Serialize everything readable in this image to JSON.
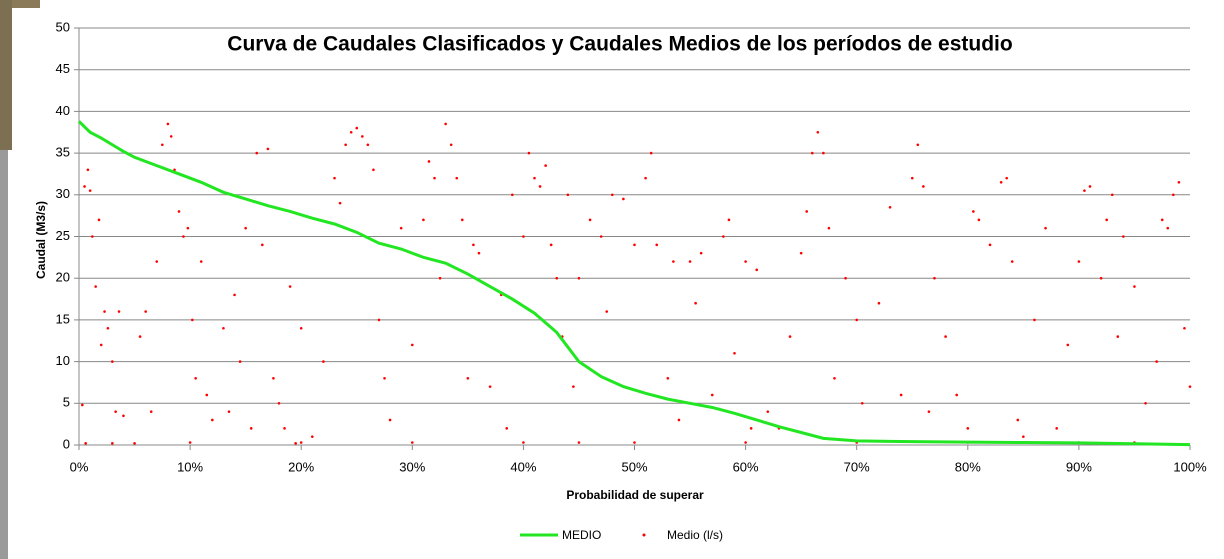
{
  "chart_data": {
    "type": "line",
    "title": "Curva de Caudales Clasificados y Caudales Medios de los períodos de estudio",
    "x_label": "Probabilidad de superar",
    "y_label": "Caudal (M3/s)",
    "xlim": [
      0,
      100
    ],
    "ylim": [
      0,
      50
    ],
    "xticks": [
      {
        "value": 0,
        "label": "0%"
      },
      {
        "value": 10,
        "label": "10%"
      },
      {
        "value": 20,
        "label": "20%"
      },
      {
        "value": 30,
        "label": "30%"
      },
      {
        "value": 40,
        "label": "40%"
      },
      {
        "value": 50,
        "label": "50%"
      },
      {
        "value": 60,
        "label": "60%"
      },
      {
        "value": 70,
        "label": "70%"
      },
      {
        "value": 80,
        "label": "80%"
      },
      {
        "value": 90,
        "label": "90%"
      },
      {
        "value": 100,
        "label": "100%"
      }
    ],
    "yticks": [
      0,
      5,
      10,
      15,
      20,
      25,
      30,
      35,
      40,
      45,
      50
    ],
    "grid": true,
    "legend": "bottom",
    "series": [
      {
        "name": "MEDIO",
        "type": "line",
        "color": "#22e622",
        "x": [
          0,
          1,
          2,
          3,
          4,
          5,
          7,
          9,
          11,
          13,
          15,
          17,
          19,
          21,
          23,
          25,
          27,
          29,
          31,
          33,
          35,
          37,
          39,
          41,
          43,
          45,
          47,
          49,
          51,
          53,
          55,
          57,
          59,
          61,
          63,
          65,
          67,
          70,
          75,
          80,
          85,
          90,
          95,
          100
        ],
        "values": [
          38.8,
          37.5,
          36.8,
          36,
          35.2,
          34.5,
          33.5,
          32.5,
          31.5,
          30.3,
          29.5,
          28.7,
          28,
          27.2,
          26.5,
          25.5,
          24.2,
          23.5,
          22.5,
          21.8,
          20.5,
          19,
          17.5,
          15.8,
          13.5,
          10,
          8.2,
          7,
          6.2,
          5.5,
          5,
          4.5,
          3.8,
          3,
          2.2,
          1.5,
          0.8,
          0.5,
          0.4,
          0.35,
          0.3,
          0.25,
          0.15,
          0.05
        ]
      },
      {
        "name": "Medio (l/s)",
        "type": "scatter",
        "color": "#ff0000",
        "x": [
          0.3,
          0.5,
          0.8,
          1,
          1.2,
          1.5,
          1.8,
          2,
          2.3,
          2.6,
          3,
          3.3,
          3.6,
          4,
          0.6,
          3,
          5,
          5.5,
          6,
          6.5,
          7,
          7.5,
          8,
          8.3,
          8.6,
          9,
          9.4,
          9.8,
          10.2,
          10.5,
          11,
          11.5,
          12,
          13,
          13.5,
          14,
          14.5,
          15,
          15.5,
          16,
          16.5,
          17,
          17.5,
          18,
          18.5,
          19,
          19.5,
          20,
          21,
          22,
          23,
          23.5,
          24,
          24.5,
          25,
          25.5,
          26,
          26.5,
          27,
          27.5,
          28,
          29,
          30,
          31,
          31.5,
          32,
          32.5,
          33,
          33.5,
          34,
          34.5,
          35,
          35.5,
          36,
          37,
          38,
          38.5,
          39,
          40,
          40.5,
          41,
          41.5,
          42,
          42.5,
          43,
          43.5,
          44,
          44.5,
          45,
          46,
          47,
          47.5,
          48,
          49,
          50,
          51,
          51.5,
          52,
          53,
          53.5,
          54,
          55,
          55.5,
          56,
          57,
          58,
          58.5,
          59,
          60,
          60.5,
          61,
          62,
          63,
          64,
          65,
          65.5,
          66,
          66.5,
          67,
          67.5,
          68,
          69,
          70,
          70.5,
          72,
          73,
          74,
          75,
          75.5,
          76,
          76.5,
          77,
          78,
          79,
          80,
          80.5,
          81,
          82,
          83,
          83.5,
          84,
          84.5,
          85,
          86,
          87,
          88,
          89,
          90,
          90.5,
          91,
          92,
          92.5,
          93,
          93.5,
          94,
          95,
          96,
          97,
          97.5,
          98,
          98.5,
          99,
          99.5,
          100,
          10,
          20,
          30,
          40,
          45,
          50,
          60,
          70,
          80,
          90,
          95
        ],
        "values": [
          4.8,
          31,
          33,
          30.5,
          25,
          19,
          27,
          12,
          16,
          14,
          10,
          4,
          16,
          3.5,
          0.2,
          0.2,
          0.2,
          13,
          16,
          4,
          22,
          36,
          38.5,
          37,
          33,
          28,
          25,
          26,
          15,
          8,
          22,
          6,
          3,
          14,
          4,
          18,
          10,
          26,
          2,
          35,
          24,
          35.5,
          8,
          5,
          2,
          19,
          0.2,
          14,
          1,
          10,
          32,
          29,
          36,
          37.5,
          38,
          37,
          36,
          33,
          15,
          8,
          3,
          26,
          12,
          27,
          34,
          32,
          20,
          38.5,
          36,
          32,
          27,
          8,
          24,
          23,
          7,
          18,
          2,
          30,
          25,
          35,
          32,
          31,
          33.5,
          24,
          20,
          13,
          30,
          7,
          20,
          27,
          25,
          16,
          30,
          29.5,
          24,
          32,
          35,
          24,
          8,
          22,
          3,
          22,
          17,
          23,
          6,
          25,
          27,
          11,
          22,
          2,
          21,
          4,
          2,
          13,
          23,
          28,
          35,
          37.5,
          35,
          26,
          8,
          20,
          15,
          5,
          17,
          28.5,
          6,
          32,
          36,
          31,
          4,
          20,
          13,
          6,
          2,
          28,
          27,
          24,
          31.5,
          32,
          22,
          3,
          1,
          15,
          26,
          2,
          12,
          22,
          30.5,
          31,
          20,
          27,
          30,
          13,
          25,
          19,
          5,
          10,
          27,
          26,
          30,
          31.5,
          14,
          7,
          0.3,
          0.3,
          0.3,
          0.3,
          0.3,
          0.3,
          0.3,
          0.3,
          0.3,
          0.3,
          0.3
        ]
      }
    ]
  }
}
